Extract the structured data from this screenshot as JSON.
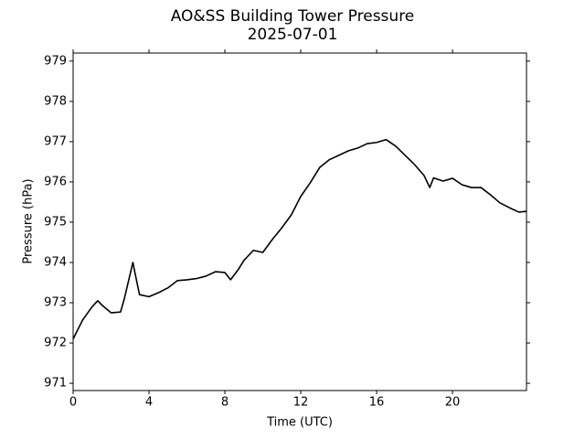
{
  "chart_data": {
    "type": "line",
    "title": "AO&SS Building Tower Pressure",
    "subtitle": "2025-07-01",
    "x_label": "Time (UTC)",
    "y_label": "Pressure (hPa)",
    "x": [
      0,
      0.5,
      1,
      1.3,
      1.5,
      2,
      2.5,
      2.7,
      3,
      3.15,
      3.3,
      3.5,
      4,
      4.5,
      5,
      5.5,
      6,
      6.5,
      7,
      7.5,
      8,
      8.3,
      8.7,
      9,
      9.5,
      10,
      10.5,
      11,
      11.5,
      12,
      12.5,
      13,
      13.5,
      14,
      14.5,
      15,
      15.5,
      16,
      16.5,
      17,
      17.5,
      18,
      18.5,
      18.8,
      19,
      19.5,
      20,
      20.5,
      21,
      21.5,
      22,
      22.5,
      23,
      23.5,
      23.9
    ],
    "series": [
      {
        "name": "Pressure",
        "color": "#000000",
        "values": [
          972.1,
          972.57,
          972.9,
          973.05,
          972.95,
          972.75,
          972.77,
          973.1,
          973.7,
          974.0,
          973.65,
          973.2,
          973.15,
          973.25,
          973.37,
          973.55,
          973.57,
          973.6,
          973.66,
          973.77,
          973.75,
          973.57,
          973.82,
          974.05,
          974.3,
          974.25,
          974.57,
          974.86,
          975.18,
          975.64,
          975.98,
          976.36,
          976.55,
          976.66,
          976.77,
          976.84,
          976.95,
          976.98,
          977.05,
          976.89,
          976.66,
          976.43,
          976.16,
          975.86,
          976.1,
          976.02,
          976.09,
          975.93,
          975.86,
          975.86,
          975.68,
          975.48,
          975.36,
          975.25,
          975.27
        ]
      }
    ],
    "xlim": [
      0,
      23.9
    ],
    "xticks": [
      0,
      4,
      8,
      12,
      16,
      20
    ],
    "ylim": [
      970.82,
      979.2
    ],
    "yticks": [
      971,
      972,
      973,
      974,
      975,
      976,
      977,
      978,
      979
    ],
    "grid": false
  }
}
